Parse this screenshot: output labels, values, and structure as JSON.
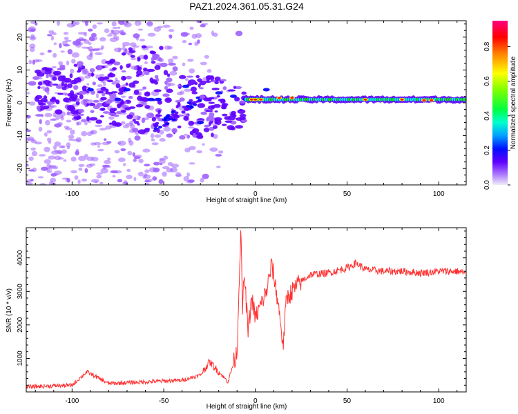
{
  "figure_title": "PAZ1.2024.361.05.31.G24",
  "chart_data": [
    {
      "type": "heatmap",
      "xlabel": "Height of straight line (km)",
      "ylabel": "Frequency (Hz)",
      "xlim": [
        -125,
        115
      ],
      "ylim": [
        -25,
        25
      ],
      "x_ticks": [
        -100,
        -50,
        0,
        50,
        100
      ],
      "x_tick_labels": [
        "-100",
        "-50",
        "0",
        "50",
        "100"
      ],
      "y_ticks": [
        -20,
        -10,
        0,
        10,
        20
      ],
      "y_tick_labels": [
        "-20",
        "-10",
        "0",
        "10",
        "20"
      ],
      "colorbar": {
        "label": "Normalized spectral amplitude",
        "range": [
          0,
          0.95
        ],
        "ticks": [
          0.0,
          0.2,
          0.4,
          0.6,
          0.8
        ],
        "tick_labels": [
          "0.0",
          "0.2",
          "0.4",
          "0.6",
          "0.8"
        ],
        "colormap": [
          "#e0d8f0",
          "#a060ff",
          "#6000ff",
          "#0000ff",
          "#00b0ff",
          "#00ffcc",
          "#00ff00",
          "#c0ff00",
          "#ffff00",
          "#ff8000",
          "#ff0000",
          "#ff0080"
        ]
      },
      "description_values": {
        "scattered_region_x": [
          -125,
          -5
        ],
        "scattered_freq_spread_hz": [
          -25,
          22
        ],
        "coherent_line_x": [
          -5,
          115
        ],
        "coherent_line_freq_hz": 1
      }
    },
    {
      "type": "line",
      "xlabel": "Height of straight line (km)",
      "ylabel": "SNR (10 * v/v)",
      "xlim": [
        -125,
        115
      ],
      "ylim": [
        0,
        4900
      ],
      "x_ticks": [
        -100,
        -50,
        0,
        50,
        100
      ],
      "x_tick_labels": [
        "-100",
        "-50",
        "0",
        "50",
        "100"
      ],
      "y_ticks": [
        1000,
        2000,
        3000,
        4000
      ],
      "y_tick_labels": [
        "1000",
        "2000",
        "3000",
        "4000"
      ],
      "color": "#ff3030",
      "key_points": {
        "x": [
          -125,
          -100,
          -92,
          -80,
          -60,
          -40,
          -30,
          -25,
          -20,
          -15,
          -10,
          -8,
          -7,
          -6,
          -4,
          -2,
          0,
          3,
          6,
          9,
          12,
          14,
          15,
          17,
          20,
          25,
          30,
          40,
          50,
          55,
          60,
          70,
          80,
          90,
          100,
          110,
          115
        ],
        "y": [
          150,
          200,
          600,
          250,
          300,
          350,
          500,
          900,
          600,
          300,
          1200,
          4850,
          2500,
          3500,
          1800,
          2800,
          2200,
          2600,
          3000,
          3800,
          2800,
          2000,
          1300,
          2800,
          3000,
          3300,
          3500,
          3550,
          3700,
          3850,
          3650,
          3600,
          3600,
          3550,
          3600,
          3600,
          3550
        ]
      }
    }
  ]
}
